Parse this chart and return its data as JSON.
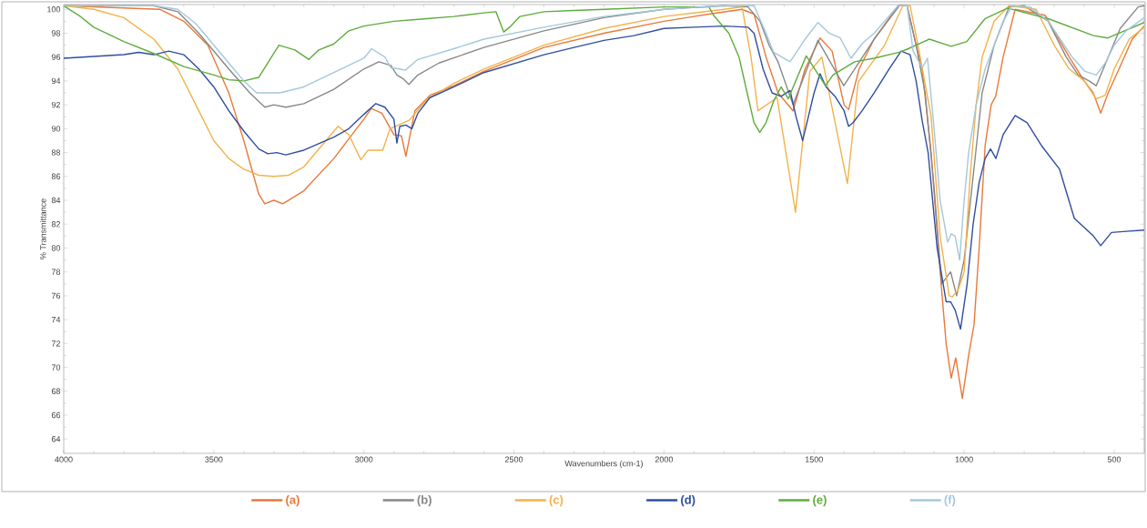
{
  "chart_data": {
    "type": "line",
    "xlabel": "Wavenumbers (cm-1)",
    "ylabel": "% Transmittance",
    "xlim": [
      4000,
      400
    ],
    "ylim": [
      62.8,
      100.4
    ],
    "xticks": [
      4000,
      3500,
      3000,
      2500,
      2000,
      1500,
      1000,
      500
    ],
    "yticks": [
      64,
      66,
      68,
      70,
      72,
      74,
      76,
      78,
      80,
      82,
      84,
      86,
      88,
      90,
      92,
      94,
      96,
      98,
      100
    ],
    "legend": "bottom",
    "grid": false,
    "marker": "none",
    "line_style": "solid",
    "series": [
      {
        "name": "(a)",
        "color": "#e8793a",
        "x": [
          4000,
          3680,
          3600,
          3520,
          3450,
          3400,
          3350,
          3330,
          3300,
          3270,
          3200,
          3100,
          3000,
          2975,
          2940,
          2900,
          2875,
          2860,
          2830,
          2780,
          2700,
          2600,
          2400,
          2200,
          2000,
          1850,
          1740,
          1700,
          1660,
          1620,
          1570,
          1530,
          1480,
          1440,
          1400,
          1385,
          1350,
          1300,
          1220,
          1190,
          1160,
          1140,
          1110,
          1080,
          1060,
          1043,
          1028,
          1006,
          985,
          967,
          950,
          930,
          910,
          895,
          870,
          830,
          730,
          650,
          600,
          570,
          545,
          520,
          484,
          440,
          400
        ],
        "values": [
          100.3,
          100,
          99,
          97,
          93,
          89,
          84.5,
          83.7,
          84,
          83.7,
          84.8,
          87.5,
          90.8,
          91.7,
          91.3,
          89.5,
          89.4,
          87.7,
          91.5,
          92.8,
          93.6,
          94.8,
          96.8,
          98,
          99,
          99.6,
          100,
          99.6,
          96,
          93,
          91.5,
          95,
          97.6,
          96.5,
          92,
          91.6,
          95,
          97.5,
          100.3,
          100.3,
          97,
          95,
          88,
          78,
          72,
          69.1,
          70.8,
          67.4,
          71,
          73.6,
          80,
          88.6,
          92,
          92.7,
          96,
          100,
          99.5,
          96,
          94,
          93,
          91.3,
          93,
          95,
          97.5,
          98.6
        ]
      },
      {
        "name": "(b)",
        "color": "#888888",
        "x": [
          4000,
          3800,
          3700,
          3620,
          3550,
          3450,
          3380,
          3330,
          3300,
          3260,
          3200,
          3100,
          3000,
          2950,
          2910,
          2890,
          2870,
          2850,
          2820,
          2750,
          2600,
          2400,
          2200,
          2000,
          1800,
          1720,
          1680,
          1650,
          1620,
          1570,
          1487,
          1401,
          1300,
          1216,
          1190,
          1160,
          1130,
          1100,
          1075,
          1045,
          1025,
          1000,
          970,
          940,
          900,
          850,
          800,
          720,
          660,
          620,
          584,
          560,
          520,
          480,
          420,
          400
        ],
        "values": [
          100.3,
          100.3,
          100.3,
          99.8,
          98,
          95,
          93,
          91.8,
          92,
          91.8,
          92.1,
          93.3,
          95,
          95.6,
          95.3,
          94.5,
          94.2,
          93.7,
          94.5,
          95.5,
          96.8,
          98.2,
          99.3,
          100,
          100.3,
          100.2,
          99,
          97,
          95.6,
          92,
          97.4,
          93.6,
          97.5,
          100.3,
          100.3,
          97,
          93,
          85,
          77,
          78,
          76,
          79,
          86,
          93,
          97,
          100.2,
          100.3,
          99,
          96,
          94.5,
          94,
          93.6,
          96,
          98.4,
          100.2,
          100.3
        ]
      },
      {
        "name": "(c)",
        "color": "#f2b24a",
        "x": [
          4000,
          3900,
          3800,
          3700,
          3620,
          3550,
          3500,
          3450,
          3400,
          3350,
          3300,
          3250,
          3200,
          3086,
          3050,
          3010,
          2986,
          2937,
          2913,
          2849,
          2788,
          2700,
          2600,
          2400,
          2200,
          2000,
          1800,
          1740,
          1710,
          1687,
          1623,
          1562,
          1514,
          1474,
          1389,
          1353,
          1265,
          1204,
          1180,
          1150,
          1110,
          1080,
          1050,
          1040,
          1020,
          1000,
          980,
          960,
          940,
          900,
          850,
          760,
          700,
          650,
          600,
          560,
          530,
          500,
          450,
          400
        ],
        "values": [
          100.3,
          100,
          99.3,
          97.5,
          95,
          91.5,
          89,
          87.5,
          86.6,
          86.1,
          86,
          86.1,
          86.8,
          90.2,
          89.5,
          87.4,
          88.2,
          88.2,
          90,
          90.7,
          92.5,
          93.8,
          95,
          97,
          98.4,
          99.4,
          100,
          100.2,
          96,
          91.5,
          92.6,
          83,
          94.8,
          96,
          85.4,
          93.9,
          97,
          100.3,
          100.3,
          96.5,
          91,
          81,
          76,
          75.9,
          76.5,
          78,
          86,
          92,
          96,
          99,
          100.3,
          100,
          97,
          95,
          94,
          92.5,
          92.8,
          95,
          97.5,
          98.5
        ]
      },
      {
        "name": "(d)",
        "color": "#2f4ea1",
        "x": [
          4000,
          3800,
          3750,
          3700,
          3650,
          3600,
          3550,
          3500,
          3450,
          3400,
          3350,
          3320,
          3290,
          3260,
          3200,
          3100,
          3050,
          3000,
          2960,
          2930,
          2900,
          2890,
          2880,
          2860,
          2840,
          2820,
          2780,
          2700,
          2600,
          2400,
          2300,
          2200,
          2100,
          2000,
          1900,
          1800,
          1720,
          1700,
          1670,
          1640,
          1610,
          1580,
          1560,
          1538,
          1500,
          1480,
          1460,
          1430,
          1400,
          1385,
          1370,
          1340,
          1300,
          1250,
          1210,
          1180,
          1160,
          1140,
          1120,
          1090,
          1060,
          1045,
          1030,
          1012,
          990,
          970,
          950,
          930,
          912,
          894,
          870,
          830,
          790,
          740,
          682,
          633,
          569,
          545,
          509,
          460,
          400
        ],
        "values": [
          95.9,
          96.2,
          96.4,
          96.2,
          96.5,
          96.2,
          95,
          93.5,
          91.5,
          89.8,
          88.3,
          87.9,
          88,
          87.8,
          88.2,
          89.3,
          90,
          91.2,
          92.1,
          91.8,
          90.8,
          88.8,
          90.2,
          90.3,
          90,
          91.3,
          92.6,
          93.5,
          94.7,
          96.2,
          96.8,
          97.4,
          97.8,
          98.4,
          98.5,
          98.6,
          98.5,
          98,
          95,
          93,
          92.7,
          93.2,
          91,
          89,
          93,
          94.6,
          93.5,
          92.7,
          91.5,
          90.2,
          90.5,
          91.5,
          93,
          95,
          96.5,
          96.2,
          94,
          90.7,
          88,
          80,
          75.5,
          75.5,
          74.8,
          73.2,
          77,
          82,
          85.5,
          87.5,
          88.3,
          87.5,
          89.5,
          91.1,
          90.5,
          88.5,
          86.6,
          82.5,
          81,
          80.2,
          81.3,
          81.4,
          81.5
        ]
      },
      {
        "name": "(e)",
        "color": "#5eac3e",
        "x": [
          4000,
          3950,
          3900,
          3800,
          3700,
          3600,
          3500,
          3450,
          3400,
          3350,
          3283,
          3230,
          3183,
          3150,
          3100,
          3050,
          3000,
          2900,
          2800,
          2700,
          2600,
          2560,
          2534,
          2510,
          2480,
          2400,
          2300,
          2200,
          2000,
          1850,
          1835,
          1784,
          1750,
          1723,
          1700,
          1681,
          1660,
          1635,
          1610,
          1586,
          1526,
          1462,
          1437,
          1365,
          1300,
          1216,
          1186,
          1116,
          1043,
          991,
          931,
          855,
          718,
          569,
          521,
          400
        ],
        "values": [
          100.3,
          99.5,
          98.5,
          97.3,
          96.3,
          95.2,
          94.5,
          94.1,
          94,
          94.3,
          97,
          96.6,
          95.8,
          96.6,
          97.1,
          98.2,
          98.6,
          99,
          99.2,
          99.4,
          99.7,
          99.8,
          98.1,
          98.6,
          99.4,
          99.8,
          99.9,
          100,
          100.2,
          100.2,
          99.5,
          98,
          96,
          93,
          90.5,
          89.7,
          90.5,
          92.3,
          93.5,
          92.5,
          96.1,
          93.6,
          94.5,
          95.6,
          95.9,
          96.4,
          96.7,
          97.5,
          96.9,
          97.3,
          99.2,
          100.1,
          99.2,
          97.8,
          97.6,
          98.9
        ]
      },
      {
        "name": "(f)",
        "color": "#a4c8dc",
        "x": [
          4000,
          3800,
          3700,
          3620,
          3560,
          3500,
          3450,
          3400,
          3357,
          3280,
          3200,
          3100,
          3000,
          2974,
          2930,
          2910,
          2880,
          2862,
          2820,
          2700,
          2600,
          2400,
          2200,
          2000,
          1800,
          1700,
          1660,
          1635,
          1580,
          1530,
          1487,
          1450,
          1413,
          1377,
          1337,
          1300,
          1220,
          1190,
          1170,
          1140,
          1122,
          1100,
          1080,
          1055,
          1043,
          1030,
          1015,
          1000,
          985,
          960,
          930,
          900,
          870,
          840,
          780,
          720,
          680,
          640,
          597,
          560,
          530,
          500,
          460,
          400
        ],
        "values": [
          100.3,
          100.3,
          100.3,
          100,
          98.8,
          97,
          95.5,
          94,
          93,
          93,
          93.5,
          94.7,
          95.9,
          96.7,
          96,
          95.1,
          95,
          94.9,
          95.8,
          96.7,
          97.5,
          98.5,
          99.4,
          100,
          100.3,
          100.3,
          98,
          96.4,
          95.6,
          97.5,
          98.9,
          98,
          97.6,
          95.9,
          97.2,
          98,
          100.3,
          100.3,
          96.5,
          95.1,
          95.9,
          90,
          84,
          80.5,
          81.2,
          81,
          79,
          84,
          88,
          92,
          95,
          97,
          99,
          100.3,
          100.2,
          99,
          97.5,
          96,
          94.8,
          94.5,
          95.5,
          97,
          98.2,
          99.3
        ]
      }
    ]
  }
}
